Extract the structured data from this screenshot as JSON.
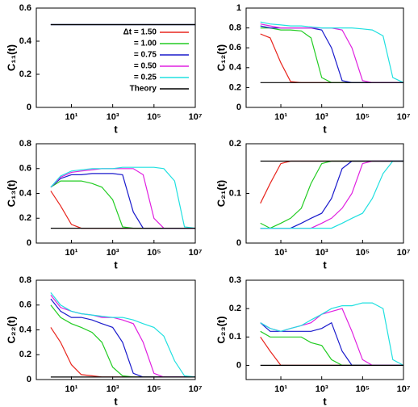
{
  "chart_data": [
    {
      "type": "line",
      "ylabel": "C₁₁(t)",
      "xlabel": "t",
      "log_x": true,
      "legend": "right",
      "x": [
        1,
        3,
        10,
        30,
        100,
        300,
        1000,
        3000,
        10000,
        30000,
        100000,
        300000,
        1000000,
        3000000,
        10000000
      ],
      "xlim": [
        0.2,
        10000000
      ],
      "xticks": [
        {
          "value": 10,
          "label": "10¹"
        },
        {
          "value": 1000,
          "label": "10³"
        },
        {
          "value": 100000,
          "label": "10⁵"
        },
        {
          "value": 10000000,
          "label": "10⁷"
        }
      ],
      "ylim": [
        0,
        0.6
      ],
      "yticks": [
        0,
        0.2,
        0.4,
        0.6
      ],
      "series": [
        {
          "name": "Δt = 1.50",
          "color": "#e8261e",
          "values": [
            0.5,
            0.5,
            0.5,
            0.5,
            0.5,
            0.5,
            0.5,
            0.5,
            0.5,
            0.5,
            0.5,
            0.5,
            0.5,
            0.5,
            0.5
          ]
        },
        {
          "name": "= 1.00",
          "color": "#22cc22",
          "values": [
            0.5,
            0.5,
            0.5,
            0.5,
            0.5,
            0.5,
            0.5,
            0.5,
            0.5,
            0.5,
            0.5,
            0.5,
            0.5,
            0.5,
            0.5
          ]
        },
        {
          "name": "= 0.75",
          "color": "#1a1acc",
          "values": [
            0.5,
            0.5,
            0.5,
            0.5,
            0.5,
            0.5,
            0.5,
            0.5,
            0.5,
            0.5,
            0.5,
            0.5,
            0.5,
            0.5,
            0.5
          ]
        },
        {
          "name": "= 0.50",
          "color": "#e020e0",
          "values": [
            0.5,
            0.5,
            0.5,
            0.5,
            0.5,
            0.5,
            0.5,
            0.5,
            0.5,
            0.5,
            0.5,
            0.5,
            0.5,
            0.5,
            0.5
          ]
        },
        {
          "name": "= 0.25",
          "color": "#20e0e0",
          "values": [
            0.5,
            0.5,
            0.5,
            0.5,
            0.5,
            0.5,
            0.5,
            0.5,
            0.5,
            0.5,
            0.5,
            0.5,
            0.5,
            0.5,
            0.5
          ]
        },
        {
          "name": "Theory",
          "color": "#000000",
          "values": [
            0.5,
            0.5,
            0.5,
            0.5,
            0.5,
            0.5,
            0.5,
            0.5,
            0.5,
            0.5,
            0.5,
            0.5,
            0.5,
            0.5,
            0.5
          ]
        }
      ]
    },
    {
      "type": "line",
      "ylabel": "C₁₂(t)",
      "xlabel": "t",
      "log_x": true,
      "x": [
        1,
        3,
        10,
        30,
        100,
        300,
        1000,
        3000,
        10000,
        30000,
        100000,
        300000,
        1000000,
        3000000,
        10000000
      ],
      "xlim": [
        0.2,
        10000000
      ],
      "xticks": [
        {
          "value": 10,
          "label": "10¹"
        },
        {
          "value": 1000,
          "label": "10³"
        },
        {
          "value": 100000,
          "label": "10⁵"
        },
        {
          "value": 10000000,
          "label": "10⁷"
        }
      ],
      "ylim": [
        0,
        1
      ],
      "yticks": [
        0,
        0.2,
        0.4,
        0.6,
        0.8,
        1
      ],
      "series": [
        {
          "color": "#e8261e",
          "values": [
            0.74,
            0.7,
            0.45,
            0.26,
            0.25,
            0.25,
            0.25,
            0.25,
            0.25,
            0.25,
            0.25,
            0.25,
            0.25,
            0.25,
            0.25
          ]
        },
        {
          "color": "#22cc22",
          "values": [
            0.8,
            0.8,
            0.78,
            0.78,
            0.77,
            0.7,
            0.3,
            0.25,
            0.25,
            0.25,
            0.25,
            0.25,
            0.25,
            0.25,
            0.25
          ]
        },
        {
          "color": "#1a1acc",
          "values": [
            0.82,
            0.8,
            0.8,
            0.8,
            0.8,
            0.8,
            0.78,
            0.6,
            0.27,
            0.25,
            0.25,
            0.25,
            0.25,
            0.25,
            0.25
          ]
        },
        {
          "color": "#e020e0",
          "values": [
            0.84,
            0.82,
            0.8,
            0.8,
            0.8,
            0.8,
            0.8,
            0.8,
            0.78,
            0.6,
            0.27,
            0.25,
            0.25,
            0.25,
            0.25
          ]
        },
        {
          "color": "#20e0e0",
          "values": [
            0.86,
            0.84,
            0.83,
            0.82,
            0.82,
            0.81,
            0.8,
            0.8,
            0.8,
            0.8,
            0.79,
            0.78,
            0.72,
            0.3,
            0.25
          ]
        },
        {
          "color": "#000000",
          "values": [
            0.25,
            0.25,
            0.25,
            0.25,
            0.25,
            0.25,
            0.25,
            0.25,
            0.25,
            0.25,
            0.25,
            0.25,
            0.25,
            0.25,
            0.25
          ]
        }
      ]
    },
    {
      "type": "line",
      "ylabel": "C₁₃(t)",
      "xlabel": "t",
      "log_x": true,
      "x": [
        1,
        3,
        10,
        30,
        100,
        300,
        1000,
        3000,
        10000,
        30000,
        100000,
        300000,
        1000000,
        3000000,
        10000000
      ],
      "xlim": [
        0.2,
        10000000
      ],
      "xticks": [
        {
          "value": 10,
          "label": "10¹"
        },
        {
          "value": 1000,
          "label": "10³"
        },
        {
          "value": 100000,
          "label": "10⁵"
        },
        {
          "value": 10000000,
          "label": "10⁷"
        }
      ],
      "ylim": [
        0,
        0.8
      ],
      "yticks": [
        0,
        0.2,
        0.4,
        0.6,
        0.8
      ],
      "series": [
        {
          "color": "#e8261e",
          "values": [
            0.42,
            0.3,
            0.15,
            0.12,
            0.12,
            0.12,
            0.12,
            0.12,
            0.12,
            0.12,
            0.12,
            0.12,
            0.12,
            0.12,
            0.12
          ]
        },
        {
          "color": "#22cc22",
          "values": [
            0.45,
            0.5,
            0.5,
            0.5,
            0.48,
            0.45,
            0.35,
            0.13,
            0.12,
            0.12,
            0.12,
            0.12,
            0.12,
            0.12,
            0.12
          ]
        },
        {
          "color": "#1a1acc",
          "values": [
            0.45,
            0.52,
            0.55,
            0.55,
            0.56,
            0.56,
            0.56,
            0.55,
            0.25,
            0.12,
            0.12,
            0.12,
            0.12,
            0.12,
            0.12
          ]
        },
        {
          "color": "#e020e0",
          "values": [
            0.45,
            0.53,
            0.57,
            0.58,
            0.59,
            0.6,
            0.6,
            0.6,
            0.6,
            0.55,
            0.2,
            0.12,
            0.12,
            0.12,
            0.12
          ]
        },
        {
          "color": "#20e0e0",
          "values": [
            0.45,
            0.54,
            0.58,
            0.59,
            0.6,
            0.6,
            0.6,
            0.61,
            0.61,
            0.61,
            0.61,
            0.6,
            0.5,
            0.13,
            0.12
          ]
        },
        {
          "color": "#000000",
          "values": [
            0.12,
            0.12,
            0.12,
            0.12,
            0.12,
            0.12,
            0.12,
            0.12,
            0.12,
            0.12,
            0.12,
            0.12,
            0.12,
            0.12,
            0.12
          ]
        }
      ]
    },
    {
      "type": "line",
      "ylabel": "C₂₁(t)",
      "xlabel": "t",
      "log_x": true,
      "x": [
        1,
        3,
        10,
        30,
        100,
        300,
        1000,
        3000,
        10000,
        30000,
        100000,
        300000,
        1000000,
        3000000,
        10000000
      ],
      "xlim": [
        0.2,
        10000000
      ],
      "xticks": [
        {
          "value": 10,
          "label": "10¹"
        },
        {
          "value": 1000,
          "label": "10³"
        },
        {
          "value": 100000,
          "label": "10⁵"
        },
        {
          "value": 10000000,
          "label": "10⁷"
        }
      ],
      "ylim": [
        0,
        0.2
      ],
      "yticks": [
        0,
        0.1,
        0.2
      ],
      "series": [
        {
          "color": "#e8261e",
          "values": [
            0.08,
            0.12,
            0.16,
            0.165,
            0.165,
            0.165,
            0.165,
            0.165,
            0.165,
            0.165,
            0.165,
            0.165,
            0.165,
            0.165,
            0.165
          ]
        },
        {
          "color": "#22cc22",
          "values": [
            0.04,
            0.03,
            0.04,
            0.05,
            0.07,
            0.12,
            0.16,
            0.165,
            0.165,
            0.165,
            0.165,
            0.165,
            0.165,
            0.165,
            0.165
          ]
        },
        {
          "color": "#1a1acc",
          "values": [
            0.03,
            0.03,
            0.03,
            0.03,
            0.04,
            0.05,
            0.06,
            0.09,
            0.15,
            0.165,
            0.165,
            0.165,
            0.165,
            0.165,
            0.165
          ]
        },
        {
          "color": "#e020e0",
          "values": [
            0.03,
            0.03,
            0.03,
            0.03,
            0.03,
            0.03,
            0.04,
            0.05,
            0.07,
            0.1,
            0.16,
            0.165,
            0.165,
            0.165,
            0.165
          ]
        },
        {
          "color": "#20e0e0",
          "values": [
            0.03,
            0.03,
            0.03,
            0.03,
            0.03,
            0.03,
            0.03,
            0.03,
            0.04,
            0.05,
            0.06,
            0.09,
            0.14,
            0.165,
            0.165
          ]
        },
        {
          "color": "#000000",
          "values": [
            0.165,
            0.165,
            0.165,
            0.165,
            0.165,
            0.165,
            0.165,
            0.165,
            0.165,
            0.165,
            0.165,
            0.165,
            0.165,
            0.165,
            0.165
          ]
        }
      ]
    },
    {
      "type": "line",
      "ylabel": "C₂₂(t)",
      "xlabel": "t",
      "log_x": true,
      "x": [
        1,
        3,
        10,
        30,
        100,
        300,
        1000,
        3000,
        10000,
        30000,
        100000,
        300000,
        1000000,
        3000000,
        10000000
      ],
      "xlim": [
        0.2,
        10000000
      ],
      "xticks": [
        {
          "value": 10,
          "label": "10¹"
        },
        {
          "value": 1000,
          "label": "10³"
        },
        {
          "value": 100000,
          "label": "10⁵"
        },
        {
          "value": 10000000,
          "label": "10⁷"
        }
      ],
      "ylim": [
        0,
        0.8
      ],
      "yticks": [
        0,
        0.2,
        0.4,
        0.6,
        0.8
      ],
      "series": [
        {
          "color": "#e8261e",
          "values": [
            0.42,
            0.3,
            0.12,
            0.04,
            0.03,
            0.02,
            0.02,
            0.02,
            0.02,
            0.02,
            0.02,
            0.02,
            0.02,
            0.02,
            0.02
          ]
        },
        {
          "color": "#22cc22",
          "values": [
            0.6,
            0.5,
            0.45,
            0.42,
            0.38,
            0.3,
            0.1,
            0.03,
            0.02,
            0.02,
            0.02,
            0.02,
            0.02,
            0.02,
            0.02
          ]
        },
        {
          "color": "#1a1acc",
          "values": [
            0.65,
            0.55,
            0.5,
            0.5,
            0.48,
            0.45,
            0.42,
            0.3,
            0.05,
            0.02,
            0.02,
            0.02,
            0.02,
            0.02,
            0.02
          ]
        },
        {
          "color": "#e020e0",
          "values": [
            0.68,
            0.58,
            0.55,
            0.53,
            0.52,
            0.5,
            0.5,
            0.48,
            0.45,
            0.3,
            0.05,
            0.02,
            0.02,
            0.02,
            0.02
          ]
        },
        {
          "color": "#20e0e0",
          "values": [
            0.7,
            0.6,
            0.55,
            0.53,
            0.52,
            0.51,
            0.5,
            0.5,
            0.48,
            0.45,
            0.42,
            0.35,
            0.15,
            0.03,
            0.02
          ]
        },
        {
          "color": "#000000",
          "values": [
            0.02,
            0.02,
            0.02,
            0.02,
            0.02,
            0.02,
            0.02,
            0.02,
            0.02,
            0.02,
            0.02,
            0.02,
            0.02,
            0.02,
            0.02
          ]
        }
      ]
    },
    {
      "type": "line",
      "ylabel": "C₂₃(t)",
      "xlabel": "t",
      "log_x": true,
      "x": [
        1,
        3,
        10,
        30,
        100,
        300,
        1000,
        3000,
        10000,
        30000,
        100000,
        300000,
        1000000,
        3000000,
        10000000
      ],
      "xlim": [
        0.2,
        10000000
      ],
      "xticks": [
        {
          "value": 10,
          "label": "10¹"
        },
        {
          "value": 1000,
          "label": "10³"
        },
        {
          "value": 100000,
          "label": "10⁵"
        },
        {
          "value": 10000000,
          "label": "10⁷"
        }
      ],
      "ylim": [
        -0.05,
        0.3
      ],
      "yticks": [
        0,
        0.1,
        0.2,
        0.3
      ],
      "series": [
        {
          "color": "#e8261e",
          "values": [
            0.1,
            0.05,
            0,
            0,
            0,
            0,
            0,
            0,
            0,
            0,
            0,
            0,
            0,
            0,
            0
          ]
        },
        {
          "color": "#22cc22",
          "values": [
            0.12,
            0.1,
            0.1,
            0.1,
            0.1,
            0.08,
            0.07,
            0.02,
            0,
            0,
            0,
            0,
            0,
            0,
            0
          ]
        },
        {
          "color": "#1a1acc",
          "values": [
            0.15,
            0.12,
            0.12,
            0.12,
            0.12,
            0.12,
            0.13,
            0.15,
            0.05,
            0,
            0,
            0,
            0,
            0,
            0
          ]
        },
        {
          "color": "#e020e0",
          "values": [
            0.15,
            0.13,
            0.12,
            0.13,
            0.14,
            0.15,
            0.18,
            0.19,
            0.2,
            0.12,
            0.02,
            0,
            0,
            0,
            0
          ]
        },
        {
          "color": "#20e0e0",
          "values": [
            0.15,
            0.13,
            0.12,
            0.13,
            0.14,
            0.16,
            0.18,
            0.2,
            0.21,
            0.21,
            0.22,
            0.22,
            0.2,
            0.02,
            0
          ]
        },
        {
          "color": "#000000",
          "values": [
            0,
            0,
            0,
            0,
            0,
            0,
            0,
            0,
            0,
            0,
            0,
            0,
            0,
            0,
            0
          ]
        }
      ]
    }
  ]
}
